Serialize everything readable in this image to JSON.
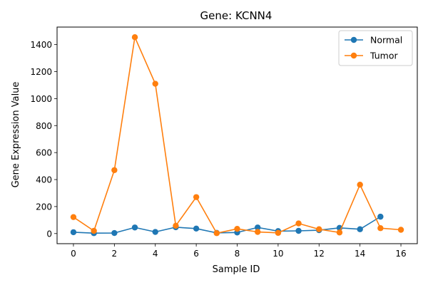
{
  "chart_data": {
    "type": "line",
    "title": "Gene: KCNN4",
    "xlabel": "Sample ID",
    "ylabel": "Gene Expression Value",
    "xlim": [
      -0.8,
      16.8
    ],
    "ylim": [
      -75,
      1530
    ],
    "xticks": [
      0,
      2,
      4,
      6,
      8,
      10,
      12,
      14,
      16
    ],
    "yticks": [
      0,
      200,
      400,
      600,
      800,
      1000,
      1200,
      1400
    ],
    "grid": false,
    "legend": "top-right",
    "series": [
      {
        "name": "Normal",
        "color": "#1f77b4",
        "x": [
          0,
          1,
          2,
          3,
          4,
          5,
          6,
          7,
          8,
          9,
          10,
          11,
          12,
          13,
          14,
          15
        ],
        "y": [
          10,
          3,
          4,
          45,
          12,
          47,
          37,
          5,
          8,
          45,
          18,
          20,
          25,
          42,
          32,
          125
        ]
      },
      {
        "name": "Tumor",
        "color": "#ff7f0e",
        "x": [
          0,
          1,
          2,
          3,
          4,
          5,
          6,
          7,
          8,
          9,
          10,
          11,
          12,
          13,
          14,
          15,
          16
        ],
        "y": [
          122,
          20,
          470,
          1455,
          1110,
          58,
          270,
          3,
          35,
          12,
          5,
          75,
          32,
          8,
          362,
          40,
          28
        ]
      }
    ]
  }
}
